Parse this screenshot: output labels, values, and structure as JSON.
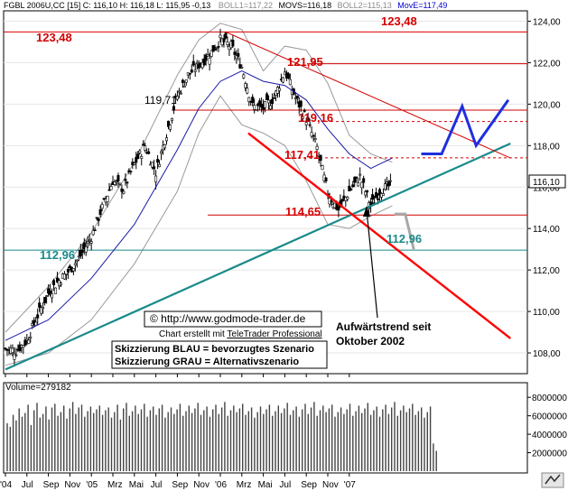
{
  "chart_data": {
    "type": "candlestick",
    "header": {
      "instrument": "FGBL 2006U,CC [15] C: 116,10 H: 116,18 L: 115,95 -0,13",
      "boll1": "BOLL1=117,22",
      "movs": "MOVS=116,18",
      "boll2": "BOLL2=115,13",
      "move": "MovE=117,49"
    },
    "volume_label": "Volume=279182",
    "last_price_label": "116,10",
    "y_axis": {
      "range": [
        107.0,
        124.5
      ],
      "ticks": [
        108,
        110,
        112,
        114,
        116,
        118,
        120,
        122,
        124
      ],
      "tick_labels": [
        "108,00",
        "110,00",
        "112,00",
        "114,00",
        "116,00",
        "118,00",
        "120,00",
        "122,00",
        "124,00"
      ]
    },
    "volume_axis": {
      "range": [
        0,
        9000000
      ],
      "ticks": [
        2000000,
        4000000,
        6000000,
        8000000
      ],
      "tick_labels": [
        "2000000",
        "4000000",
        "6000000",
        "8000000"
      ]
    },
    "x_axis": {
      "labels": [
        "'04",
        "Jul",
        "Sep",
        "Nov",
        "'05",
        "Mrz",
        "Mai",
        "Jul",
        "Sep",
        "Nov",
        "'06",
        "Mrz",
        "Mai",
        "Jul",
        "Sep",
        "Nov",
        "'07"
      ],
      "range_months": [
        "2004-04",
        "2007-01"
      ]
    },
    "levels": [
      {
        "label": "123,48",
        "value": 123.48,
        "color": "#d40000"
      },
      {
        "label": "121,95",
        "value": 121.95,
        "color": "#d40000"
      },
      {
        "label": "119,71",
        "value": 119.71,
        "color": "#d40000"
      },
      {
        "label": "119,16",
        "value": 119.16,
        "color": "#d40000"
      },
      {
        "label": "117,41",
        "value": 117.41,
        "color": "#d40000"
      },
      {
        "label": "114,65",
        "value": 114.65,
        "color": "#d40000"
      },
      {
        "label": "112,96",
        "value": 112.96,
        "color": "#1a8a8a"
      }
    ],
    "close_path": [
      [
        0,
        108.2
      ],
      [
        1,
        108.1
      ],
      [
        2,
        108.6
      ],
      [
        3,
        109.8
      ],
      [
        4,
        110.9
      ],
      [
        5,
        111.5
      ],
      [
        6,
        112.0
      ],
      [
        7,
        112.7
      ],
      [
        8,
        113.6
      ],
      [
        9,
        115.0
      ],
      [
        10,
        116.3
      ],
      [
        11,
        115.9
      ],
      [
        12,
        117.1
      ],
      [
        13,
        118.0
      ],
      [
        14,
        116.7
      ],
      [
        15,
        118.6
      ],
      [
        16,
        120.4
      ],
      [
        17,
        121.4
      ],
      [
        18,
        121.9
      ],
      [
        19,
        122.4
      ],
      [
        20,
        123.1
      ],
      [
        21,
        122.8
      ],
      [
        22,
        121.8
      ],
      [
        23,
        119.9
      ],
      [
        24,
        119.8
      ],
      [
        25,
        120.3
      ],
      [
        26,
        121.6
      ],
      [
        27,
        120.3
      ],
      [
        28,
        119.3
      ],
      [
        29,
        117.9
      ],
      [
        30,
        115.7
      ],
      [
        31,
        114.9
      ],
      [
        32,
        115.8
      ],
      [
        33,
        116.5
      ],
      [
        34,
        115.1
      ],
      [
        35,
        115.9
      ],
      [
        36,
        116.1
      ]
    ],
    "moving_average": [
      [
        0,
        108.6
      ],
      [
        4,
        109.6
      ],
      [
        8,
        111.6
      ],
      [
        12,
        114.2
      ],
      [
        16,
        117.8
      ],
      [
        18,
        119.8
      ],
      [
        20,
        121.1
      ],
      [
        22,
        121.6
      ],
      [
        24,
        121.1
      ],
      [
        26,
        120.9
      ],
      [
        28,
        120.2
      ],
      [
        30,
        118.8
      ],
      [
        32,
        117.6
      ],
      [
        34,
        116.9
      ],
      [
        36,
        117.4
      ]
    ],
    "bollinger_upper": [
      [
        0,
        109.0
      ],
      [
        4,
        111.2
      ],
      [
        8,
        113.8
      ],
      [
        12,
        117.2
      ],
      [
        16,
        121.4
      ],
      [
        18,
        123.1
      ],
      [
        20,
        123.9
      ],
      [
        22,
        123.6
      ],
      [
        24,
        121.6
      ],
      [
        26,
        122.8
      ],
      [
        28,
        122.6
      ],
      [
        30,
        121.0
      ],
      [
        32,
        118.5
      ],
      [
        34,
        117.6
      ],
      [
        36,
        117.2
      ]
    ],
    "bollinger_lower": [
      [
        0,
        107.4
      ],
      [
        4,
        108.0
      ],
      [
        8,
        109.6
      ],
      [
        12,
        112.3
      ],
      [
        16,
        115.8
      ],
      [
        18,
        118.6
      ],
      [
        20,
        120.4
      ],
      [
        22,
        119.0
      ],
      [
        24,
        118.6
      ],
      [
        26,
        118.0
      ],
      [
        28,
        116.3
      ],
      [
        30,
        114.2
      ],
      [
        32,
        114.0
      ],
      [
        34,
        114.6
      ],
      [
        36,
        115.1
      ]
    ],
    "volume": [
      5.2,
      4.8,
      6.1,
      5.5,
      6.8,
      5.9,
      6.3,
      7.2,
      5.0,
      6.6,
      7.4,
      5.8,
      6.2,
      7.0,
      5.6,
      6.9,
      7.3,
      6.0,
      6.4,
      7.1,
      5.7,
      6.8,
      7.5,
      6.2,
      6.9,
      7.2,
      5.9,
      6.5,
      7.0,
      6.3,
      6.7,
      7.1,
      6.1,
      6.6,
      6.9,
      5.8,
      6.4,
      7.2,
      5.6,
      6.8,
      7.4,
      6.0,
      6.5,
      7.1,
      6.2,
      6.7,
      7.3,
      5.9,
      6.6,
      7.0,
      6.1,
      6.8,
      7.2,
      5.8,
      6.4,
      6.9,
      6.2,
      6.7,
      7.3,
      6.0,
      6.5,
      7.1,
      6.3,
      6.8,
      7.4,
      6.1,
      6.6,
      7.0,
      5.9,
      6.7,
      7.2,
      6.2,
      6.9,
      7.5,
      6.0,
      6.6,
      7.1,
      6.4,
      6.8,
      7.3,
      6.1,
      6.5,
      6.9,
      5.8,
      6.4,
      7.0,
      6.2,
      6.7,
      7.2,
      6.0,
      6.5,
      7.1,
      6.3,
      6.8,
      7.4,
      6.1,
      6.6,
      7.0,
      5.9,
      6.7,
      7.3,
      6.2,
      6.9,
      7.5,
      6.0,
      6.6,
      7.1,
      6.4,
      6.8,
      7.2,
      5.9,
      6.4,
      6.9,
      6.2,
      6.7,
      7.3,
      6.0,
      6.5,
      7.1,
      6.3,
      6.8,
      7.4,
      6.1,
      6.6,
      7.0,
      5.9,
      6.7,
      7.2,
      6.2,
      6.9,
      7.5,
      6.0,
      6.6,
      7.1,
      6.4,
      6.8,
      7.3,
      6.1,
      6.5,
      6.9,
      5.8,
      6.4,
      7.0,
      3.0,
      2.2
    ],
    "trend_lines": [
      {
        "name": "uptrend",
        "from": [
          0,
          107.2
        ],
        "to": [
          47,
          118.1
        ],
        "color": "#1a8a8a"
      },
      {
        "name": "downtrend-channel",
        "from": [
          20.5,
          123.48
        ],
        "to": [
          47,
          117.4
        ],
        "color": "#d40000"
      },
      {
        "name": "steep-down",
        "from": [
          22.6,
          118.6
        ],
        "to": [
          47,
          108.7
        ],
        "color": "#ff0000"
      }
    ],
    "scenario_blue": [
      [
        38.7,
        117.6
      ],
      [
        40.6,
        117.6
      ],
      [
        42.5,
        119.9
      ],
      [
        43.8,
        118.0
      ],
      [
        46.8,
        120.2
      ]
    ],
    "scenario_grey": [
      [
        36.2,
        114.7
      ],
      [
        37.2,
        114.7
      ],
      [
        38.0,
        113.0
      ]
    ],
    "annotations": {
      "copyright": "© http://www.godmode-trader.de",
      "credit_prefix": "Chart erstellt mit",
      "credit_link": "TeleTrader Professional",
      "legend_blue": "Skizzierung BLAU = bevorzugtes Szenario",
      "legend_grey": "Skizzierung GRAU = Alternativszenario",
      "trend_note_line1": "Aufwärtstrend seit",
      "trend_note_line2": "Oktober 2002"
    }
  }
}
